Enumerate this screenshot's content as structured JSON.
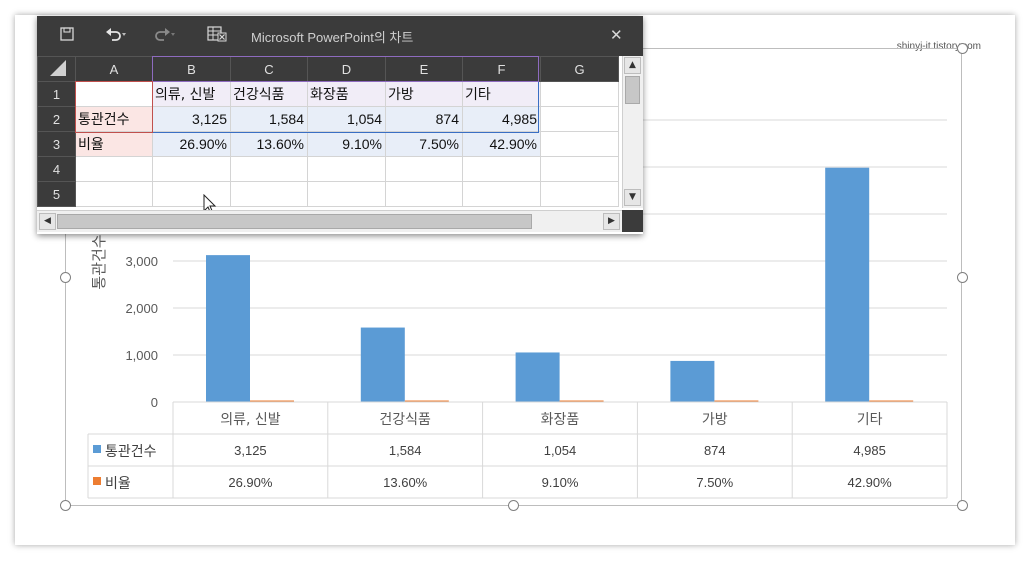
{
  "watermark": "shinyj-it.tistory.com",
  "window": {
    "title": "Microsoft PowerPoint의 차트",
    "close_glyph": "✕",
    "icons": [
      "save-icon",
      "undo-icon",
      "redo-icon",
      "edit-in-excel-icon",
      "close-icon"
    ]
  },
  "sheet": {
    "columns": [
      "A",
      "B",
      "C",
      "D",
      "E",
      "F",
      "G"
    ],
    "rows": [
      "1",
      "2",
      "3",
      "4",
      "5"
    ],
    "cells": [
      [
        "",
        "의류, 신발",
        "건강식품",
        "화장품",
        "가방",
        "기타",
        ""
      ],
      [
        "통관건수",
        "3,125",
        "1,584",
        "1,054",
        "874",
        "4,985",
        ""
      ],
      [
        "비율",
        "26.90%",
        "13.60%",
        "9.10%",
        "7.50%",
        "42.90%",
        ""
      ],
      [
        "",
        "",
        "",
        "",
        "",
        "",
        ""
      ],
      [
        "",
        "",
        "",
        "",
        "",
        "",
        ""
      ]
    ]
  },
  "chart_data": {
    "type": "bar",
    "categories": [
      "의류, 신발",
      "건강식품",
      "화장품",
      "가방",
      "기타"
    ],
    "series": [
      {
        "name": "통관건수",
        "values": [
          3125,
          1584,
          1054,
          874,
          4985
        ],
        "labels": [
          "3,125",
          "1,584",
          "1,054",
          "874",
          "4,985"
        ],
        "color": "#5b9bd5"
      },
      {
        "name": "비율",
        "values": [
          0.269,
          0.136,
          0.091,
          0.075,
          0.429
        ],
        "labels": [
          "26.90%",
          "13.60%",
          "9.10%",
          "7.50%",
          "42.90%"
        ],
        "color": "#ed7d31"
      }
    ],
    "ylabel": "통관건수",
    "y_ticks": [
      "0",
      "1,000",
      "2,000",
      "3,000"
    ],
    "ylim": [
      0,
      6000
    ],
    "grid": true,
    "legend": "data-table",
    "data_table": true
  }
}
